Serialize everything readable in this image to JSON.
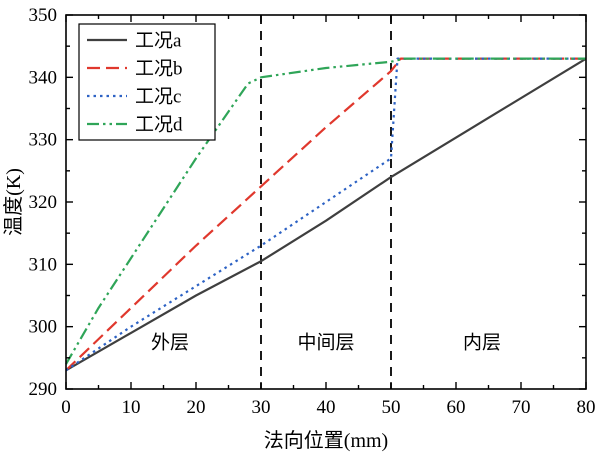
{
  "chart_data": {
    "type": "line",
    "title": "",
    "xlabel": "法向位置(mm)",
    "ylabel": "温度(K)",
    "xlim": [
      0,
      80
    ],
    "ylim": [
      290,
      350
    ],
    "xticks": [
      0,
      10,
      20,
      30,
      40,
      50,
      60,
      70,
      80
    ],
    "yticks": [
      290,
      300,
      310,
      320,
      330,
      340,
      350
    ],
    "x_minor_step": 5,
    "y_minor_step": 5,
    "grid": false,
    "axis_color": "#000000",
    "series": [
      {
        "name": "工况a",
        "color": "#3f3f3f",
        "style": "solid",
        "points": [
          [
            0,
            293
          ],
          [
            10,
            299
          ],
          [
            20,
            305
          ],
          [
            30,
            310.5
          ],
          [
            40,
            317
          ],
          [
            50,
            324
          ],
          [
            65,
            333.5
          ],
          [
            80,
            343
          ]
        ]
      },
      {
        "name": "工况b",
        "color": "#e0382d",
        "style": "dashed",
        "points": [
          [
            0,
            293
          ],
          [
            10,
            303
          ],
          [
            20,
            313
          ],
          [
            30,
            322.5
          ],
          [
            40,
            332
          ],
          [
            50,
            341
          ],
          [
            51.5,
            343
          ],
          [
            80,
            343
          ]
        ]
      },
      {
        "name": "工况c",
        "color": "#2d62c4",
        "style": "dotted",
        "points": [
          [
            0,
            293
          ],
          [
            10,
            300
          ],
          [
            20,
            306.5
          ],
          [
            30,
            313
          ],
          [
            40,
            320
          ],
          [
            50,
            327
          ],
          [
            51,
            343
          ],
          [
            80,
            343
          ]
        ]
      },
      {
        "name": "工况d",
        "color": "#2fa558",
        "style": "dashdotdot",
        "points": [
          [
            0,
            294
          ],
          [
            5,
            303
          ],
          [
            10,
            311
          ],
          [
            15,
            319
          ],
          [
            20,
            327
          ],
          [
            25,
            334.5
          ],
          [
            28,
            339
          ],
          [
            30,
            340
          ],
          [
            40,
            341.5
          ],
          [
            50,
            342.5
          ],
          [
            52,
            343
          ],
          [
            80,
            343
          ]
        ]
      }
    ],
    "vlines": {
      "x": [
        30,
        50
      ],
      "style": "dashed",
      "color": "#000000"
    },
    "region_labels": [
      {
        "text": "外层",
        "x": 16,
        "y": 296.5
      },
      {
        "text": "中间层",
        "x": 40,
        "y": 296.5
      },
      {
        "text": "内层",
        "x": 64,
        "y": 296.5
      }
    ],
    "legend": {
      "position": "top-left",
      "items": [
        "工况a",
        "工况b",
        "工况c",
        "工况d"
      ]
    }
  }
}
